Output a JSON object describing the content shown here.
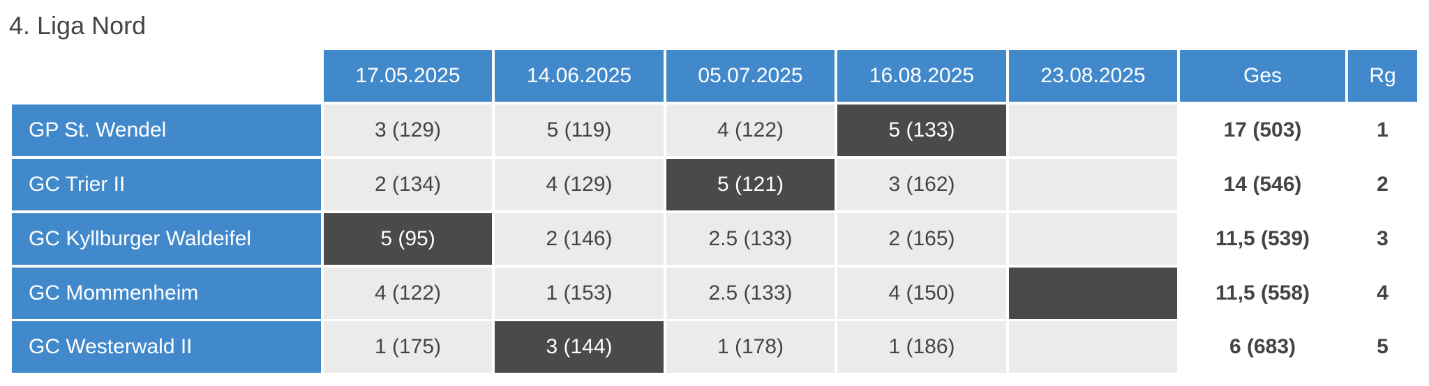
{
  "header": {
    "title": "4. Liga Nord"
  },
  "table": {
    "columns": [
      "17.05.2025",
      "14.06.2025",
      "05.07.2025",
      "16.08.2025",
      "23.08.2025",
      "Ges",
      "Rg"
    ],
    "rows": [
      {
        "team": "GP St. Wendel",
        "cells": [
          "3 (129)",
          "5 (119)",
          "4 (122)",
          "5 (133)",
          null
        ],
        "total": "17 (503)",
        "rank": "1",
        "highlight": 3
      },
      {
        "team": "GC Trier II",
        "cells": [
          "2 (134)",
          "4 (129)",
          "5 (121)",
          "3 (162)",
          null
        ],
        "total": "14 (546)",
        "rank": "2",
        "highlight": 2
      },
      {
        "team": "GC Kyllburger Waldeifel",
        "cells": [
          "5 (95)",
          "2 (146)",
          "2.5 (133)",
          "2 (165)",
          null
        ],
        "total": "11,5 (539)",
        "rank": "3",
        "highlight": 0
      },
      {
        "team": "GC Mommenheim",
        "cells": [
          "4 (122)",
          "1 (153)",
          "2.5 (133)",
          "4 (150)",
          null
        ],
        "total": "11,5 (558)",
        "rank": "4",
        "highlight": 4
      },
      {
        "team": "GC Westerwald II",
        "cells": [
          "1 (175)",
          "3 (144)",
          "1 (178)",
          "1 (186)",
          null
        ],
        "total": "6 (683)",
        "rank": "5",
        "highlight": 1
      }
    ]
  }
}
